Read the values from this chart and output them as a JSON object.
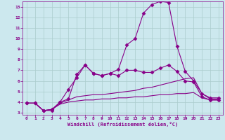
{
  "xlabel": "Windchill (Refroidissement éolien,°C)",
  "bg_color": "#cce8ee",
  "grid_color": "#aacccc",
  "line_color": "#880088",
  "xlim": [
    -0.5,
    23.5
  ],
  "ylim": [
    2.8,
    13.5
  ],
  "xticks": [
    0,
    1,
    2,
    3,
    4,
    5,
    6,
    7,
    8,
    9,
    10,
    11,
    12,
    13,
    14,
    15,
    16,
    17,
    18,
    19,
    20,
    21,
    22,
    23
  ],
  "yticks": [
    3,
    4,
    5,
    6,
    7,
    8,
    9,
    10,
    11,
    12,
    13
  ],
  "series": [
    {
      "x": [
        0,
        1,
        2,
        3,
        4,
        5,
        6,
        7,
        8,
        9,
        10,
        11,
        12,
        13,
        14,
        15,
        16,
        17,
        18,
        19,
        20,
        21,
        22,
        23
      ],
      "y": [
        3.9,
        3.9,
        3.2,
        3.2,
        4.0,
        5.2,
        6.3,
        7.5,
        6.7,
        6.5,
        6.7,
        7.1,
        9.4,
        10.0,
        12.4,
        13.2,
        13.5,
        13.4,
        9.3,
        6.9,
        6.0,
        4.8,
        4.4,
        4.4
      ],
      "marker": "D",
      "ms": 2.5,
      "lw": 0.8
    },
    {
      "x": [
        0,
        1,
        2,
        3,
        4,
        5,
        6,
        7,
        8,
        9,
        10,
        11,
        12,
        13,
        14,
        15,
        16,
        17,
        18,
        19,
        20,
        21,
        22,
        23
      ],
      "y": [
        3.9,
        3.9,
        3.2,
        3.3,
        4.0,
        4.3,
        6.6,
        7.5,
        6.7,
        6.5,
        6.7,
        6.5,
        7.0,
        7.0,
        6.8,
        6.8,
        7.2,
        7.5,
        6.9,
        6.0,
        5.9,
        4.5,
        4.2,
        4.2
      ],
      "marker": "D",
      "ms": 2.5,
      "lw": 0.8
    },
    {
      "x": [
        0,
        1,
        2,
        3,
        4,
        5,
        6,
        7,
        8,
        9,
        10,
        11,
        12,
        13,
        14,
        15,
        16,
        17,
        18,
        19,
        20,
        21,
        22,
        23
      ],
      "y": [
        3.9,
        3.9,
        3.2,
        3.3,
        3.9,
        4.2,
        4.5,
        4.6,
        4.7,
        4.7,
        4.8,
        4.9,
        5.0,
        5.1,
        5.3,
        5.4,
        5.6,
        5.8,
        6.0,
        6.2,
        6.3,
        4.8,
        4.3,
        4.3
      ],
      "marker": null,
      "ms": 0,
      "lw": 0.8
    },
    {
      "x": [
        0,
        1,
        2,
        3,
        4,
        5,
        6,
        7,
        8,
        9,
        10,
        11,
        12,
        13,
        14,
        15,
        16,
        17,
        18,
        19,
        20,
        21,
        22,
        23
      ],
      "y": [
        3.9,
        3.9,
        3.2,
        3.3,
        3.8,
        4.0,
        4.1,
        4.2,
        4.2,
        4.3,
        4.3,
        4.4,
        4.4,
        4.5,
        4.5,
        4.6,
        4.7,
        4.7,
        4.8,
        4.8,
        4.9,
        4.4,
        4.2,
        4.2
      ],
      "marker": null,
      "ms": 0,
      "lw": 0.8
    }
  ]
}
